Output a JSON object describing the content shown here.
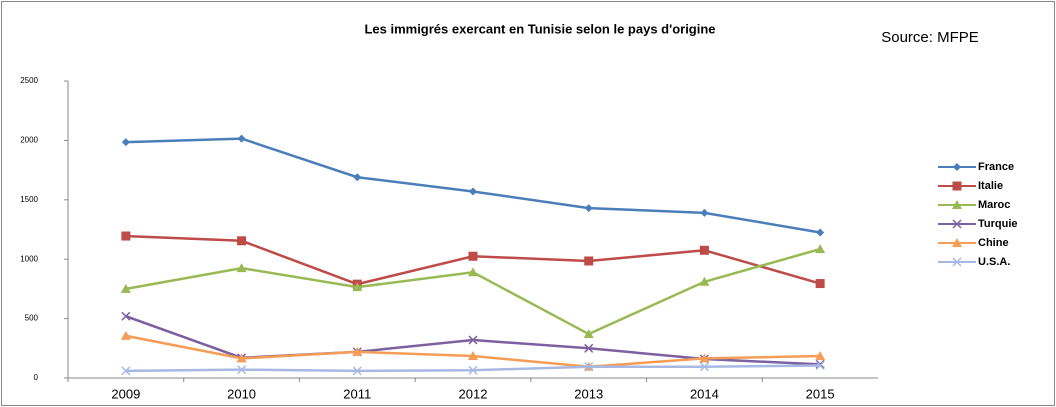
{
  "chart_data": {
    "type": "line",
    "title": "Les  immigrés exercant en Tunisie  selon le pays d'origine",
    "annotation": "Source: MFPE",
    "categories": [
      "2009",
      "2010",
      "2011",
      "2012",
      "2013",
      "2014",
      "2015"
    ],
    "series": [
      {
        "name": "France",
        "color": "#4a7ebb",
        "marker": "diamond",
        "values": [
          1985,
          2015,
          1690,
          1570,
          1430,
          1390,
          1225
        ]
      },
      {
        "name": "Italie",
        "color": "#be4b48",
        "marker": "square",
        "values": [
          1195,
          1155,
          790,
          1025,
          985,
          1075,
          795
        ]
      },
      {
        "name": "Maroc",
        "color": "#98b954",
        "marker": "triangle",
        "values": [
          750,
          925,
          765,
          890,
          370,
          810,
          1085
        ]
      },
      {
        "name": "Turquie",
        "color": "#7d60a0",
        "marker": "x",
        "values": [
          520,
          170,
          220,
          320,
          250,
          160,
          115
        ]
      },
      {
        "name": "Chine",
        "color": "#f59d56",
        "marker": "triangle",
        "values": [
          355,
          165,
          220,
          185,
          95,
          165,
          185
        ]
      },
      {
        "name": "U.S.A.",
        "color": "#a7b9e3",
        "marker": "x",
        "values": [
          60,
          70,
          60,
          65,
          95,
          95,
          105
        ]
      }
    ],
    "ylim": [
      0,
      2500
    ],
    "yticks": [
      0,
      500,
      1000,
      1500,
      2000,
      2500
    ],
    "legend": "right"
  }
}
